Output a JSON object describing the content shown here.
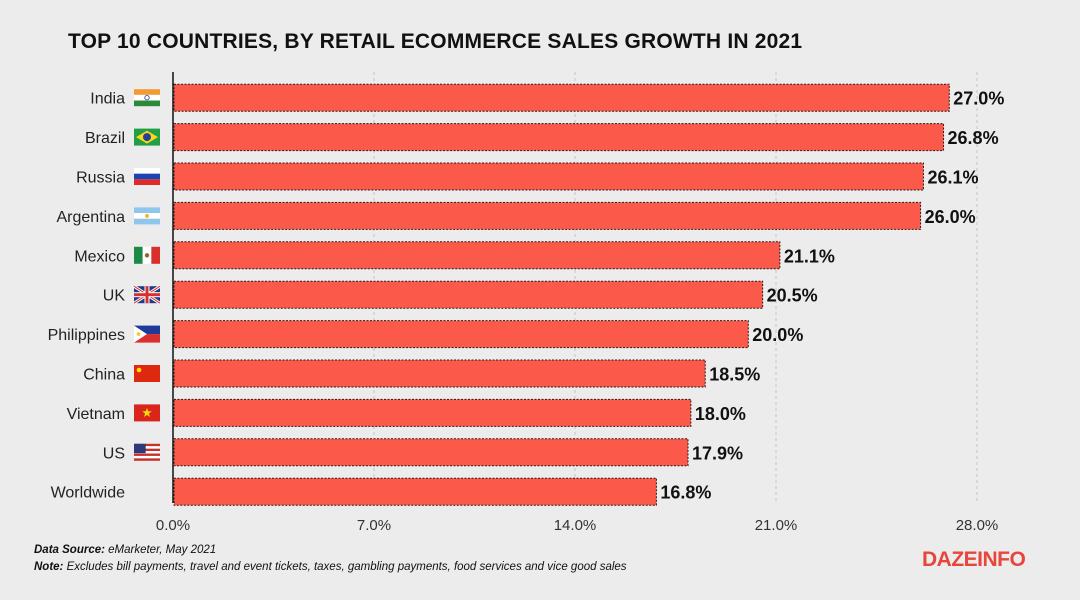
{
  "chart_data": {
    "type": "bar",
    "orientation": "horizontal",
    "title": "TOP 10 COUNTRIES, BY RETAIL ECOMMERCE SALES GROWTH IN 2021",
    "categories": [
      "India",
      "Brazil",
      "Russia",
      "Argentina",
      "Mexico",
      "UK",
      "Philippines",
      "China",
      "Vietnam",
      "US",
      "Worldwide"
    ],
    "values": [
      27.0,
      26.8,
      26.1,
      26.0,
      21.1,
      20.5,
      20.0,
      18.5,
      18.0,
      17.9,
      16.8
    ],
    "value_labels": [
      "27.0%",
      "26.8%",
      "26.1%",
      "26.0%",
      "21.1%",
      "20.5%",
      "20.0%",
      "18.5%",
      "18.0%",
      "17.9%",
      "16.8%"
    ],
    "flags": [
      "india-flag-icon",
      "brazil-flag-icon",
      "russia-flag-icon",
      "argentina-flag-icon",
      "mexico-flag-icon",
      "uk-flag-icon",
      "philippines-flag-icon",
      "china-flag-icon",
      "vietnam-flag-icon",
      "us-flag-icon",
      ""
    ],
    "xlim": [
      0,
      28
    ],
    "xticks": [
      0,
      7,
      14,
      21,
      28
    ],
    "xtick_labels": [
      "0.0%",
      "7.0%",
      "14.0%",
      "21.0%",
      "28.0%"
    ],
    "xlabel": "",
    "ylabel": "",
    "grid": true,
    "bar_color": "#fb5a4b"
  },
  "footer": {
    "source_label": "Data Source:",
    "source_text": " eMarketer, May 2021",
    "note_label": "Note:",
    "note_text": " Excludes bill payments, travel and event tickets, taxes, gambling payments, food services and vice good sales"
  },
  "logo": "DAZEINFO"
}
